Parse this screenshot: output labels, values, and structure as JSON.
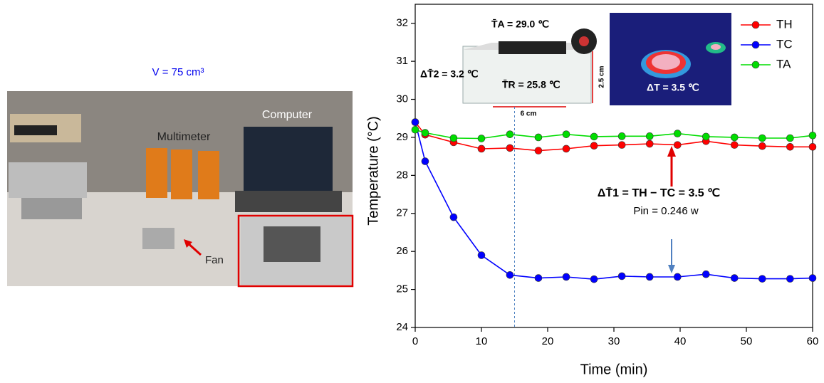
{
  "photo": {
    "volume_label": "V = 75 cm³",
    "labels": [
      "Multimeter",
      "Computer",
      "Fan"
    ]
  },
  "chart_data": {
    "type": "line",
    "x_label": "Time (min)",
    "y_label": "Temperature (°C)",
    "x": [
      0,
      1.5,
      5.8,
      10.0,
      14.3,
      18.6,
      22.8,
      27.0,
      31.2,
      35.4,
      39.6,
      43.9,
      48.2,
      52.4,
      56.6,
      60
    ],
    "series": [
      {
        "name": "TH",
        "color": "#ff0000",
        "values": [
          29.4,
          29.07,
          28.87,
          28.7,
          28.72,
          28.65,
          28.7,
          28.78,
          28.8,
          28.83,
          28.8,
          28.9,
          28.8,
          28.77,
          28.75,
          28.75
        ]
      },
      {
        "name": "TC",
        "color": "#0000ff",
        "values": [
          29.4,
          28.37,
          26.9,
          25.9,
          25.38,
          25.3,
          25.33,
          25.27,
          25.35,
          25.33,
          25.33,
          25.4,
          25.3,
          25.28,
          25.28,
          25.3
        ]
      },
      {
        "name": "TA",
        "color": "#00dd00",
        "values": [
          29.2,
          29.12,
          28.98,
          28.97,
          29.08,
          29.0,
          29.08,
          29.02,
          29.03,
          29.03,
          29.1,
          29.02,
          29.0,
          28.98,
          28.98,
          29.05
        ]
      }
    ],
    "xlim": [
      0,
      60
    ],
    "xticks": [
      0,
      10,
      20,
      30,
      40,
      50,
      60
    ],
    "ylim": [
      24,
      32.5
    ],
    "yticks": [
      24,
      25,
      26,
      27,
      28,
      29,
      30,
      31,
      32
    ],
    "vline": 15,
    "annotations": [
      "ΔT̄1 = TH − TC = 3.5 ℃",
      "Pin = 0.246 w"
    ],
    "inset_labels": [
      "T̄A = 29.0 ℃",
      "ΔT̄2 = 3.2 ℃",
      "T̄R = 25.8 ℃",
      "2.5 cm",
      "6 cm",
      "ΔT = 3.5 ℃"
    ]
  }
}
